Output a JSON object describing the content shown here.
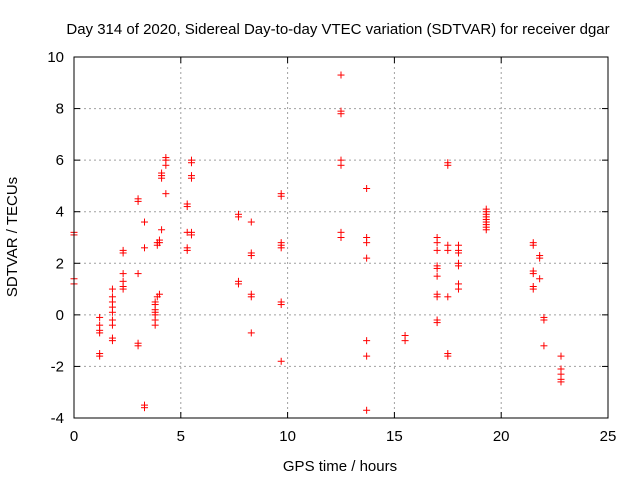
{
  "chart_data": {
    "type": "scatter",
    "title": "Day 314 of 2020, Sidereal Day-to-day VTEC variation (SDTVAR) for receiver dgar",
    "xlabel": "GPS time / hours",
    "ylabel": "SDTVAR / TECUs",
    "xlim": [
      0,
      25
    ],
    "ylim": [
      -4,
      10
    ],
    "xticks": [
      "0",
      "5",
      "10",
      "15",
      "20",
      "25"
    ],
    "yticks": [
      "-4",
      "-2",
      "0",
      "2",
      "4",
      "6",
      "8",
      "10"
    ],
    "grid": true,
    "marker": "plus",
    "color": "#ff0000",
    "series": [
      {
        "name": "SDTVAR",
        "points": [
          [
            0.0,
            3.2
          ],
          [
            0.0,
            3.1
          ],
          [
            0.0,
            1.4
          ],
          [
            0.0,
            1.2
          ],
          [
            1.2,
            -0.1
          ],
          [
            1.2,
            -0.4
          ],
          [
            1.2,
            -0.6
          ],
          [
            1.2,
            -0.7
          ],
          [
            1.2,
            -1.5
          ],
          [
            1.2,
            -1.6
          ],
          [
            1.8,
            1.0
          ],
          [
            1.8,
            0.7
          ],
          [
            1.8,
            0.5
          ],
          [
            1.8,
            0.3
          ],
          [
            1.8,
            0.1
          ],
          [
            1.8,
            -0.2
          ],
          [
            1.8,
            -0.4
          ],
          [
            1.8,
            -0.9
          ],
          [
            1.8,
            -1.0
          ],
          [
            2.3,
            2.5
          ],
          [
            2.3,
            2.4
          ],
          [
            2.3,
            1.6
          ],
          [
            2.3,
            1.3
          ],
          [
            2.3,
            1.1
          ],
          [
            2.3,
            1.0
          ],
          [
            3.0,
            4.5
          ],
          [
            3.0,
            4.4
          ],
          [
            3.0,
            1.6
          ],
          [
            3.0,
            -1.1
          ],
          [
            3.0,
            -1.2
          ],
          [
            3.3,
            3.6
          ],
          [
            3.3,
            2.6
          ],
          [
            3.3,
            -3.5
          ],
          [
            3.3,
            -3.6
          ],
          [
            3.8,
            0.5
          ],
          [
            3.8,
            0.4
          ],
          [
            3.8,
            0.2
          ],
          [
            3.8,
            0.1
          ],
          [
            3.8,
            0.0
          ],
          [
            3.8,
            -0.2
          ],
          [
            3.8,
            -0.4
          ],
          [
            3.9,
            2.8
          ],
          [
            3.9,
            2.7
          ],
          [
            3.9,
            0.7
          ],
          [
            4.0,
            2.9
          ],
          [
            4.0,
            2.8
          ],
          [
            4.0,
            0.8
          ],
          [
            4.1,
            5.5
          ],
          [
            4.1,
            5.4
          ],
          [
            4.1,
            5.3
          ],
          [
            4.1,
            3.3
          ],
          [
            4.3,
            6.1
          ],
          [
            4.3,
            6.0
          ],
          [
            4.3,
            5.8
          ],
          [
            4.3,
            4.7
          ],
          [
            5.3,
            4.3
          ],
          [
            5.3,
            4.2
          ],
          [
            5.3,
            3.2
          ],
          [
            5.3,
            2.6
          ],
          [
            5.3,
            2.5
          ],
          [
            5.5,
            6.0
          ],
          [
            5.5,
            5.9
          ],
          [
            5.5,
            5.4
          ],
          [
            5.5,
            5.3
          ],
          [
            5.5,
            3.2
          ],
          [
            5.5,
            3.1
          ],
          [
            7.7,
            3.9
          ],
          [
            7.7,
            3.8
          ],
          [
            7.7,
            1.3
          ],
          [
            7.7,
            1.2
          ],
          [
            8.3,
            3.6
          ],
          [
            8.3,
            2.4
          ],
          [
            8.3,
            2.3
          ],
          [
            8.3,
            0.8
          ],
          [
            8.3,
            0.7
          ],
          [
            8.3,
            -0.7
          ],
          [
            9.7,
            4.7
          ],
          [
            9.7,
            4.6
          ],
          [
            9.7,
            2.8
          ],
          [
            9.7,
            2.7
          ],
          [
            9.7,
            2.6
          ],
          [
            9.7,
            0.5
          ],
          [
            9.7,
            0.4
          ],
          [
            9.7,
            -1.8
          ],
          [
            12.5,
            9.3
          ],
          [
            12.5,
            7.9
          ],
          [
            12.5,
            7.8
          ],
          [
            12.5,
            6.0
          ],
          [
            12.5,
            5.8
          ],
          [
            12.5,
            3.2
          ],
          [
            12.5,
            3.0
          ],
          [
            13.7,
            4.9
          ],
          [
            13.7,
            3.0
          ],
          [
            13.7,
            2.8
          ],
          [
            13.7,
            2.2
          ],
          [
            13.7,
            -1.0
          ],
          [
            13.7,
            -1.6
          ],
          [
            13.7,
            -3.7
          ],
          [
            15.5,
            -0.8
          ],
          [
            15.5,
            -1.0
          ],
          [
            17.0,
            3.0
          ],
          [
            17.0,
            2.8
          ],
          [
            17.0,
            2.5
          ],
          [
            17.0,
            1.9
          ],
          [
            17.0,
            1.8
          ],
          [
            17.0,
            1.5
          ],
          [
            17.0,
            0.8
          ],
          [
            17.0,
            0.7
          ],
          [
            17.0,
            -0.2
          ],
          [
            17.0,
            -0.3
          ],
          [
            17.5,
            5.9
          ],
          [
            17.5,
            5.8
          ],
          [
            17.5,
            2.7
          ],
          [
            17.5,
            2.5
          ],
          [
            17.5,
            0.7
          ],
          [
            17.5,
            -1.5
          ],
          [
            17.5,
            -1.6
          ],
          [
            18.0,
            2.7
          ],
          [
            18.0,
            2.5
          ],
          [
            18.0,
            2.4
          ],
          [
            18.0,
            2.0
          ],
          [
            18.0,
            1.9
          ],
          [
            18.0,
            1.2
          ],
          [
            18.0,
            1.0
          ],
          [
            19.3,
            4.1
          ],
          [
            19.3,
            4.0
          ],
          [
            19.3,
            3.9
          ],
          [
            19.3,
            3.8
          ],
          [
            19.3,
            3.7
          ],
          [
            19.3,
            3.6
          ],
          [
            19.3,
            3.5
          ],
          [
            19.3,
            3.4
          ],
          [
            19.3,
            3.3
          ],
          [
            21.5,
            2.8
          ],
          [
            21.5,
            2.7
          ],
          [
            21.5,
            1.7
          ],
          [
            21.5,
            1.6
          ],
          [
            21.5,
            1.1
          ],
          [
            21.5,
            1.0
          ],
          [
            21.8,
            2.3
          ],
          [
            21.8,
            2.2
          ],
          [
            21.8,
            1.4
          ],
          [
            22.0,
            -0.1
          ],
          [
            22.0,
            -0.2
          ],
          [
            22.0,
            -1.2
          ],
          [
            22.8,
            -1.6
          ],
          [
            22.8,
            -2.1
          ],
          [
            22.8,
            -2.3
          ],
          [
            22.8,
            -2.5
          ],
          [
            22.8,
            -2.6
          ]
        ]
      }
    ]
  }
}
